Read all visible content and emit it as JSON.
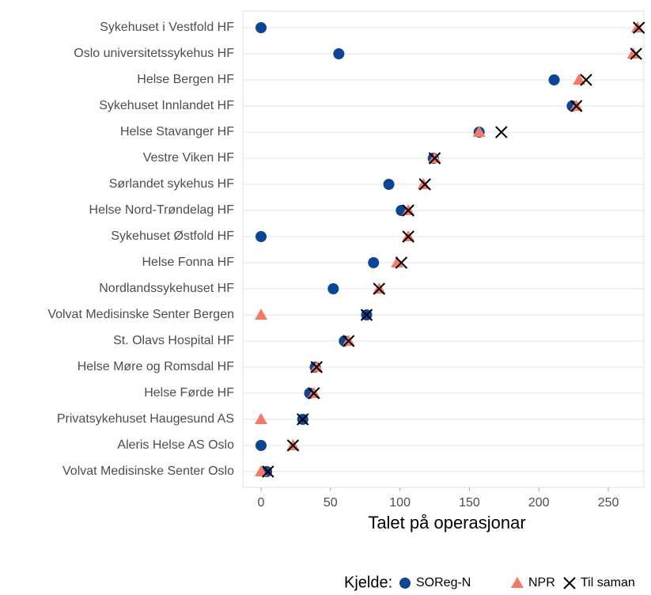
{
  "chart_data": {
    "type": "dot",
    "x_label": "Talet på operasjonar",
    "legend_title": "Kjelde:",
    "legend_position": "bottom",
    "categories": [
      "Sykehuset i Vestfold HF",
      "Oslo universitetssykehus HF",
      "Helse Bergen HF",
      "Sykehuset Innlandet HF",
      "Helse Stavanger HF",
      "Vestre Viken HF",
      "Sørlandet sykehus HF",
      "Helse Nord-Trøndelag HF",
      "Sykehuset Østfold HF",
      "Helse Fonna HF",
      "Nordlandssykehuset HF",
      "Volvat Medisinske Senter Bergen",
      "St. Olavs Hospital HF",
      "Helse Møre og Romsdal HF",
      "Helse Førde HF",
      "Privatsykehuset Haugesund AS",
      "Aleris Helse AS Oslo",
      "Volvat Medisinske Senter Oslo"
    ],
    "series": [
      {
        "name": "SOReg-N",
        "color": "#0b4596",
        "marker": "circle",
        "values": [
          0,
          56,
          211,
          224,
          157,
          124,
          92,
          101,
          0,
          81,
          52,
          76,
          60,
          39,
          35,
          30,
          0,
          4
        ]
      },
      {
        "name": "NPR",
        "color": "#f47a67",
        "marker": "triangle",
        "values": [
          271,
          268,
          229,
          227,
          157,
          125,
          117,
          106,
          106,
          98,
          85,
          0,
          63,
          40,
          38,
          0,
          23,
          0
        ]
      },
      {
        "name": "Til saman",
        "color": "#000000",
        "marker": "cross",
        "values": [
          272,
          270,
          234,
          227,
          173,
          125,
          118,
          106,
          106,
          101,
          85,
          76,
          63,
          40,
          38,
          30,
          23,
          5
        ]
      }
    ],
    "xlim": [
      -13.1,
      275.6
    ],
    "xticks": [
      0,
      50,
      100,
      150,
      200,
      250
    ],
    "grid": true
  }
}
